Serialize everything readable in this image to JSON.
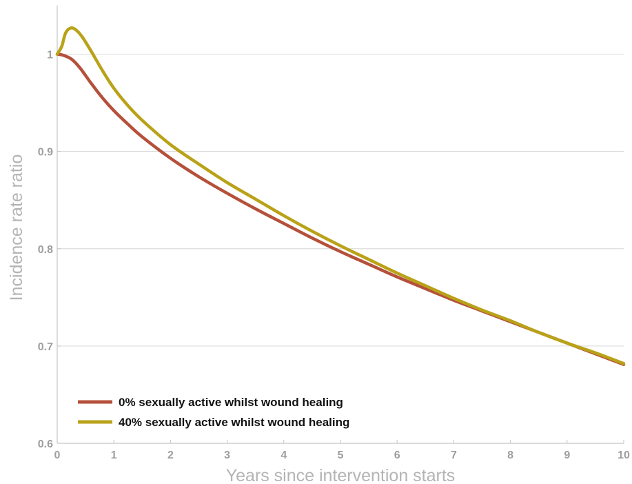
{
  "chart_data": {
    "type": "line",
    "title": "",
    "xlabel": "Years since intervention starts",
    "ylabel": "Incidence rate ratio",
    "xlim": [
      0,
      10
    ],
    "ylim": [
      0.6,
      1.05
    ],
    "xticks": [
      0,
      1,
      2,
      3,
      4,
      5,
      6,
      7,
      8,
      9,
      10
    ],
    "xtick_labels": [
      "0",
      "1",
      "2",
      "3",
      "4",
      "5",
      "6",
      "7",
      "8",
      "9",
      "10"
    ],
    "yticks": [
      0.6,
      0.7,
      0.8,
      0.9,
      1.0
    ],
    "ytick_labels": [
      "0.6",
      "0.7",
      "0.8",
      "0.9",
      "1"
    ],
    "grid": "horizontal",
    "legend_position": "bottom-left",
    "series": [
      {
        "name": "0% sexually active whilst wound healing",
        "color": "#b5503a",
        "x": [
          0,
          0.1,
          0.25,
          0.4,
          0.6,
          0.8,
          1,
          1.25,
          1.5,
          2,
          2.5,
          3,
          3.5,
          4,
          4.5,
          5,
          5.5,
          6,
          6.5,
          7,
          7.5,
          8,
          8.5,
          9,
          9.5,
          10
        ],
        "y": [
          1.0,
          0.999,
          0.995,
          0.986,
          0.97,
          0.955,
          0.942,
          0.928,
          0.915,
          0.893,
          0.874,
          0.857,
          0.841,
          0.826,
          0.811,
          0.797,
          0.784,
          0.771,
          0.759,
          0.747,
          0.736,
          0.725,
          0.714,
          0.703,
          0.692,
          0.681
        ]
      },
      {
        "name": "40% sexually active whilst wound healing",
        "color": "#b9a218",
        "x": [
          0,
          0.08,
          0.15,
          0.25,
          0.35,
          0.45,
          0.6,
          0.8,
          1,
          1.25,
          1.5,
          2,
          2.5,
          3,
          3.5,
          4,
          4.5,
          5,
          5.5,
          6,
          6.5,
          7,
          7.5,
          8,
          8.5,
          9,
          9.5,
          10
        ],
        "y": [
          1.0,
          1.008,
          1.022,
          1.027,
          1.024,
          1.017,
          1.003,
          0.983,
          0.965,
          0.947,
          0.932,
          0.907,
          0.887,
          0.868,
          0.851,
          0.834,
          0.818,
          0.803,
          0.789,
          0.775,
          0.762,
          0.749,
          0.737,
          0.726,
          0.714,
          0.703,
          0.693,
          0.682
        ]
      }
    ]
  }
}
